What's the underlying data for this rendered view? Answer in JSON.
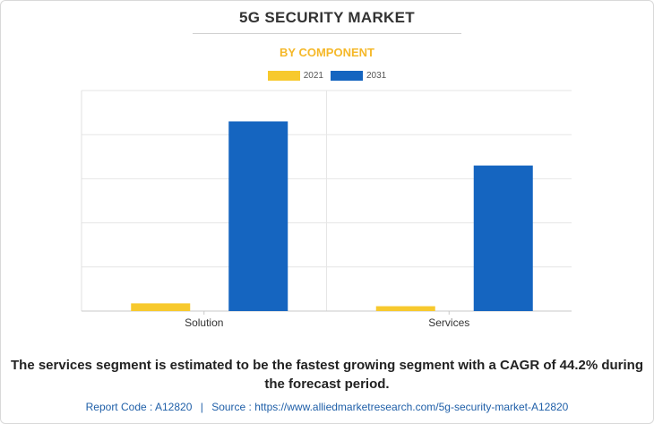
{
  "header": {
    "title": "5G SECURITY MARKET",
    "subtitle": "BY COMPONENT"
  },
  "colors": {
    "accent": "#f5b829",
    "series_2021": "#f7c92d",
    "series_2031": "#1565c0",
    "source_text": "#1f5fa8"
  },
  "chart_data": {
    "type": "bar",
    "categories": [
      "Solution",
      "Services"
    ],
    "series": [
      {
        "name": "2021",
        "values": [
          0.35,
          0.22
        ]
      },
      {
        "name": "2031",
        "values": [
          8.6,
          6.6
        ]
      }
    ],
    "ylim": [
      0,
      10
    ],
    "grid": true,
    "legend": "top-center",
    "xlabel": "",
    "ylabel": ""
  },
  "footer": {
    "note": "The services segment is estimated to be the fastest growing segment with a CAGR of 44.2% during the forecast period.",
    "report_code": "Report Code : A12820",
    "separator": "|",
    "source": "Source : https://www.alliedmarketresearch.com/5g-security-market-A12820"
  }
}
